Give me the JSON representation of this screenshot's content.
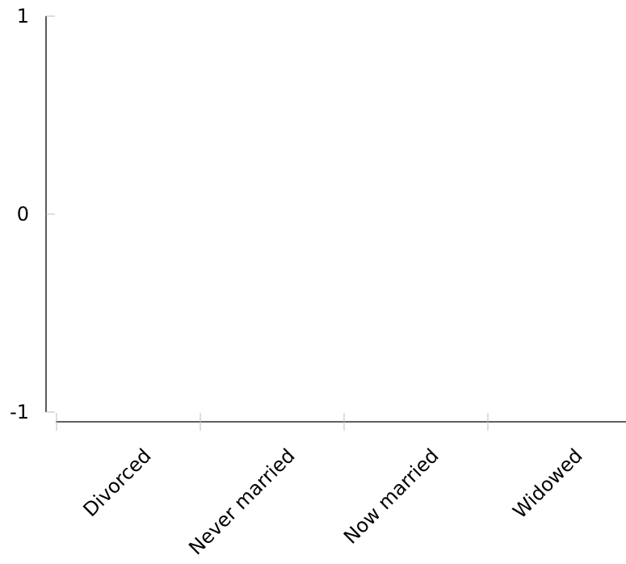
{
  "chart_data": {
    "type": "bar",
    "categories": [
      "Divorced",
      "Never married",
      "Now married",
      "Widowed"
    ],
    "series": [],
    "y_ticks": [
      {
        "value": 1,
        "label": "1"
      },
      {
        "value": 0,
        "label": "0"
      },
      {
        "value": -1,
        "label": "-1"
      }
    ],
    "ylim": [
      -1,
      1
    ],
    "title": "",
    "xlabel": "",
    "ylabel": "",
    "grid": false,
    "legend": "none"
  }
}
